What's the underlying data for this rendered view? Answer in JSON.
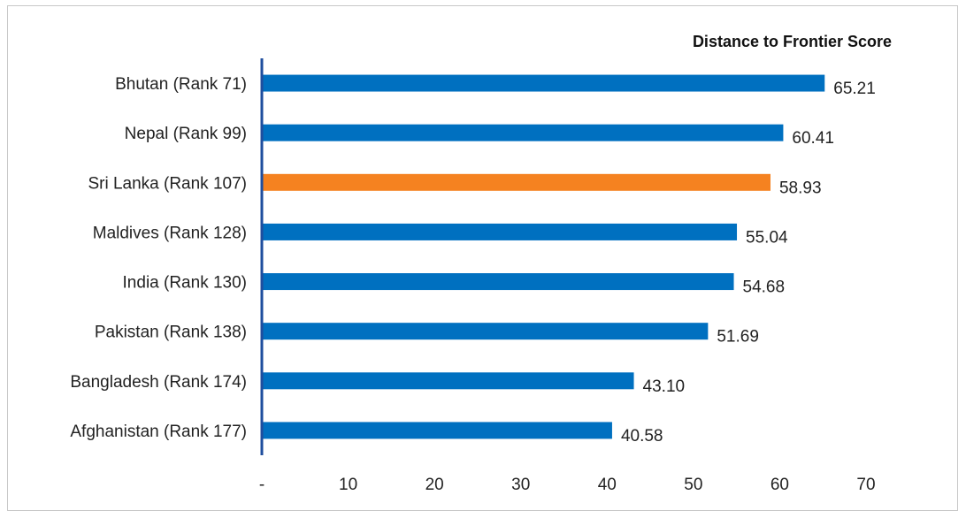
{
  "chart_data": {
    "type": "bar",
    "orientation": "horizontal",
    "title": "Distance to Frontier Score",
    "categories": [
      "Bhutan (Rank 71)",
      "Nepal (Rank 99)",
      "Sri Lanka (Rank 107)",
      "Maldives (Rank 128)",
      "India (Rank 130)",
      "Pakistan (Rank 138)",
      "Bangladesh (Rank 174)",
      "Afghanistan (Rank 177)"
    ],
    "values": [
      65.21,
      60.41,
      58.93,
      55.04,
      54.68,
      51.69,
      43.1,
      40.58
    ],
    "value_labels": [
      "65.21",
      "60.41",
      "58.93",
      "55.04",
      "54.68",
      "51.69",
      "43.10",
      "40.58"
    ],
    "xlim": [
      0,
      70
    ],
    "x_ticks": [
      {
        "value": 0,
        "label": "-"
      },
      {
        "value": 10,
        "label": "10"
      },
      {
        "value": 20,
        "label": "20"
      },
      {
        "value": 30,
        "label": "30"
      },
      {
        "value": 40,
        "label": "40"
      },
      {
        "value": 50,
        "label": "50"
      },
      {
        "value": 60,
        "label": "60"
      },
      {
        "value": 70,
        "label": "70"
      }
    ],
    "grid": false,
    "colors": {
      "bar": "#0070C0",
      "highlight": "#F58220",
      "axis": "#1f4e9e"
    },
    "highlight_index": 2
  }
}
